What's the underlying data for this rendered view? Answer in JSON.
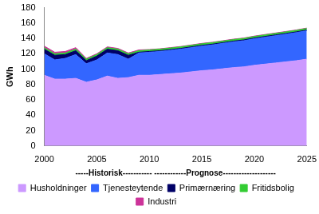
{
  "chart_data": {
    "type": "area",
    "stacked": true,
    "x_label": "-----Historisk----------- ------------Prognose--------------------",
    "y_label": "GWh",
    "x": [
      2000,
      2001,
      2002,
      2003,
      2004,
      2005,
      2006,
      2007,
      2008,
      2009,
      2010,
      2011,
      2012,
      2013,
      2014,
      2015,
      2016,
      2017,
      2018,
      2019,
      2020,
      2021,
      2022,
      2023,
      2024,
      2025
    ],
    "xlim": [
      2000,
      2025
    ],
    "xticks": [
      2000,
      2005,
      2010,
      2015,
      2020,
      2025
    ],
    "ylim": [
      0,
      180
    ],
    "yticks": [
      0,
      20,
      40,
      60,
      80,
      100,
      120,
      140,
      160,
      180
    ],
    "grid": false,
    "legend": "bottom",
    "series": [
      {
        "name": "Husholdninger",
        "color": "#cc99ff",
        "values": [
          92,
          87,
          87,
          88,
          83,
          86,
          91,
          88,
          89,
          92,
          92,
          93,
          94,
          95,
          96.5,
          98,
          99,
          100.5,
          102,
          103,
          105,
          106.5,
          108,
          109.5,
          111,
          113
        ]
      },
      {
        "name": "Tjenesteytende",
        "color": "#3366ff",
        "values": [
          28,
          25,
          27,
          31,
          24,
          26,
          30,
          31,
          24,
          29,
          30,
          30,
          30.5,
          31,
          31.5,
          32,
          32.5,
          33,
          33.5,
          34,
          34.5,
          35,
          35.5,
          36,
          36.5,
          37
        ]
      },
      {
        "name": "Primærnæring",
        "color": "#000066",
        "values": [
          6,
          6,
          5,
          5,
          4,
          5,
          5,
          5,
          5,
          1,
          1,
          1,
          1,
          1,
          1,
          1,
          1,
          1,
          1,
          1,
          1,
          1,
          1,
          1,
          1,
          1
        ]
      },
      {
        "name": "Fritidsbolig",
        "color": "#33cc33",
        "values": [
          2,
          2,
          2,
          2,
          2,
          2,
          2,
          2,
          2,
          2,
          2,
          2,
          2,
          2,
          2,
          2,
          2,
          2,
          2,
          2,
          2,
          2,
          2,
          2,
          2,
          2
        ]
      },
      {
        "name": "Industri",
        "color": "#cc3399",
        "values": [
          2,
          2,
          2,
          2,
          1,
          1,
          1,
          1,
          1,
          1,
          0.5,
          0.5,
          0.5,
          0.5,
          0.5,
          0.5,
          0.5,
          0.5,
          0.5,
          0.5,
          0.5,
          0.5,
          0.5,
          0.5,
          0.5,
          0.5
        ]
      }
    ]
  }
}
